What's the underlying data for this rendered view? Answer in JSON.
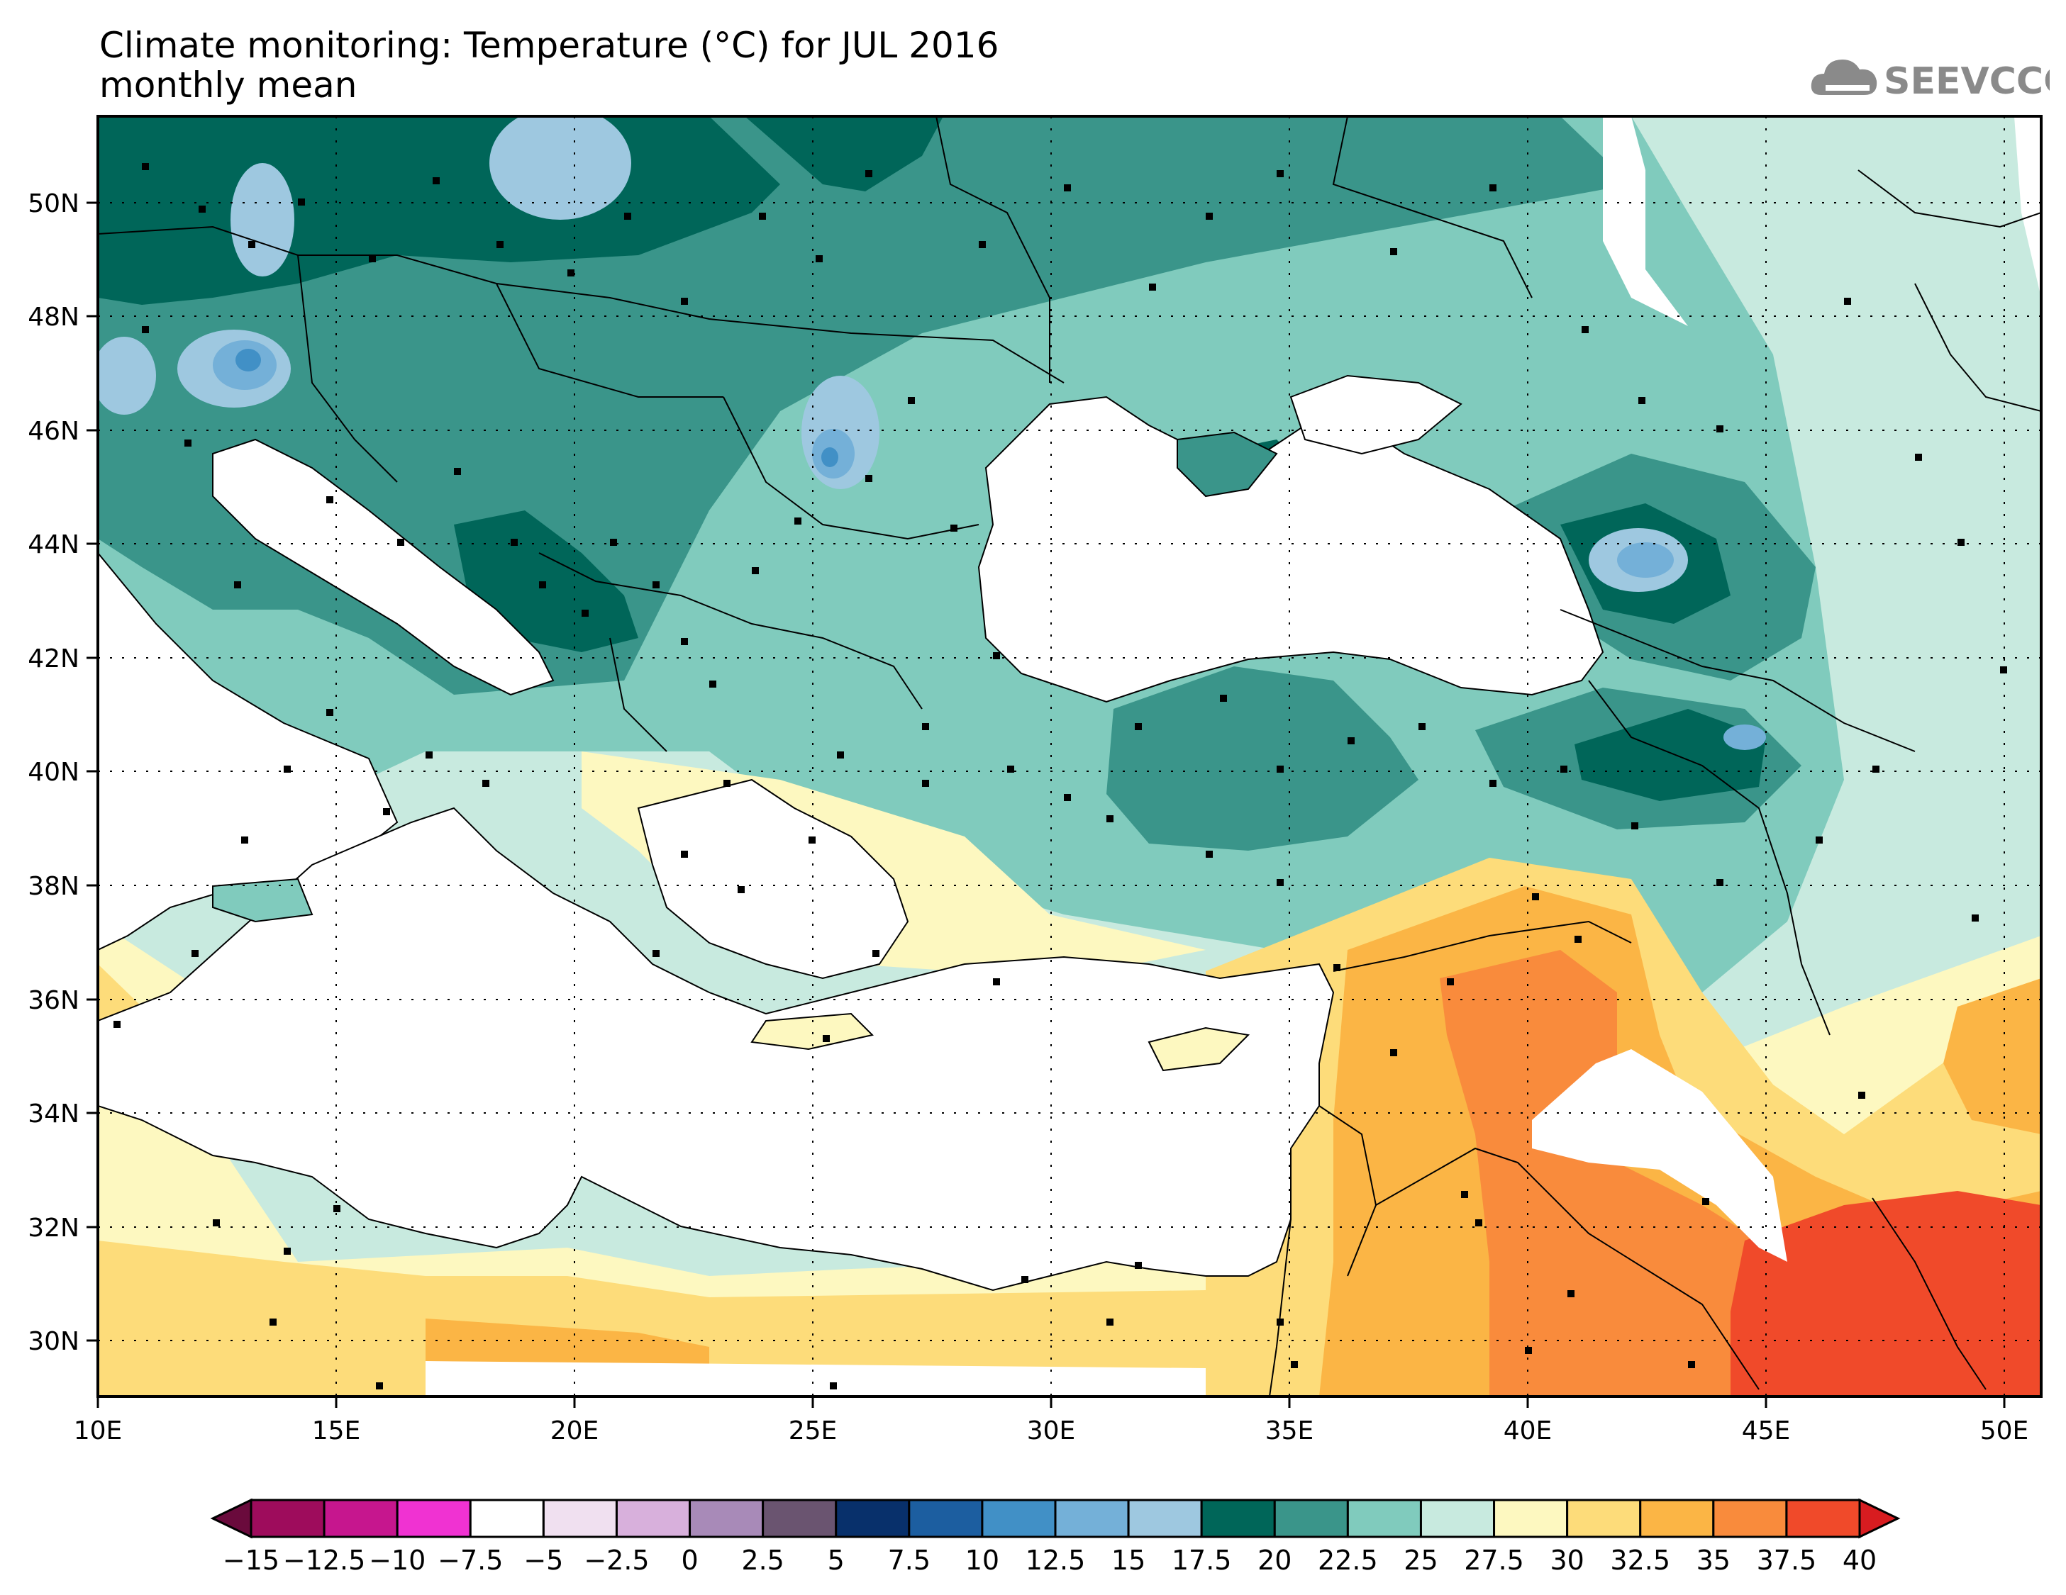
{
  "title": {
    "line1": "Climate monitoring: Temperature (°C) for JUL 2016",
    "line2": "monthly mean"
  },
  "logo": {
    "text": "SEEVCCC",
    "icon": "cloud-icon",
    "color": "#8a8a8a"
  },
  "map": {
    "lon_range": [
      10,
      51
    ],
    "lat_range": [
      29,
      51.5
    ],
    "x_ticks": [
      "10E",
      "15E",
      "20E",
      "25E",
      "30E",
      "35E",
      "40E",
      "45E",
      "50E"
    ],
    "y_ticks": [
      "30N",
      "32N",
      "34N",
      "36N",
      "38N",
      "40N",
      "42N",
      "44N",
      "46N",
      "48N",
      "50N"
    ],
    "gridlines": "dotted",
    "land_mask": "sea and unavailable data shown white",
    "stations": "black square markers"
  },
  "colorbar": {
    "labels": [
      "-15",
      "-12.5",
      "-10",
      "-7.5",
      "-5",
      "-2.5",
      "0",
      "2.5",
      "5",
      "7.5",
      "10",
      "12.5",
      "15",
      "17.5",
      "20",
      "22.5",
      "25",
      "27.5",
      "30",
      "32.5",
      "35",
      "37.5",
      "40"
    ],
    "colors": [
      "#9e0c5c",
      "#c6168e",
      "#f032d2",
      "#ffffff",
      "#f0e0f0",
      "#d8b0dc",
      "#a88ab8",
      "#6a5470",
      "#08306b",
      "#1c5ea0",
      "#4190c6",
      "#74b0d8",
      "#9ec8e0",
      "#006659",
      "#3a958a",
      "#80cbbd",
      "#c8eadf",
      "#fdf8c0",
      "#fddc7a",
      "#fbb545",
      "#f98b3c",
      "#f04a2a"
    ],
    "low_extend_color": "#6a0a3c",
    "high_extend_color": "#d81c20"
  }
}
